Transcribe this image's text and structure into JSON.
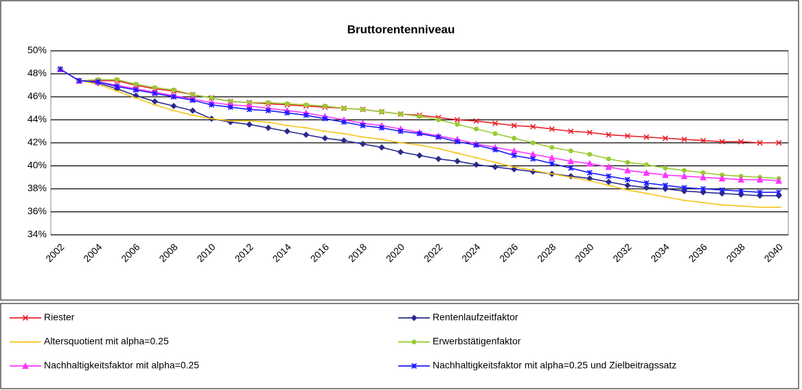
{
  "chart_data": {
    "type": "line",
    "title": "Bruttorentenniveau",
    "categories": [
      "2002",
      null,
      "2004",
      null,
      "2006",
      null,
      "2008",
      null,
      "2010",
      null,
      "2012",
      null,
      "2014",
      null,
      "2016",
      null,
      "2018",
      null,
      "2020",
      null,
      "2022",
      null,
      "2024",
      null,
      "2026",
      null,
      "2028",
      null,
      "2030",
      null,
      "2032",
      null,
      "2034",
      null,
      "2036",
      null,
      "2038",
      null,
      "2040"
    ],
    "ylim": [
      34,
      50
    ],
    "yticks": [
      {
        "value": 34,
        "label": "34%"
      },
      {
        "value": 36,
        "label": "36%"
      },
      {
        "value": 38,
        "label": "38%"
      },
      {
        "value": 40,
        "label": "40%"
      },
      {
        "value": 42,
        "label": "42%"
      },
      {
        "value": 44,
        "label": "44%"
      },
      {
        "value": 46,
        "label": "46%"
      },
      {
        "value": 48,
        "label": "48%"
      },
      {
        "value": 50,
        "label": "50%"
      }
    ],
    "grid": true,
    "legend": "bottom",
    "series": [
      {
        "name": "Riester",
        "color": "#e8202a",
        "marker": "x",
        "values": [
          48.4,
          47.4,
          47.4,
          47.4,
          47.0,
          46.7,
          46.5,
          46.2,
          45.9,
          45.6,
          45.5,
          45.4,
          45.3,
          45.2,
          45.1,
          45.0,
          44.9,
          44.7,
          44.5,
          44.4,
          44.2,
          44.0,
          43.9,
          43.7,
          43.5,
          43.4,
          43.2,
          43.0,
          42.9,
          42.7,
          42.6,
          42.5,
          42.4,
          42.3,
          42.2,
          42.1,
          42.1,
          42.0,
          42.0
        ]
      },
      {
        "name": "Rentenlaufzeitfaktor",
        "color": "#2a2a8c",
        "marker": "diamond",
        "values": [
          48.4,
          47.4,
          47.2,
          46.7,
          46.1,
          45.6,
          45.2,
          44.8,
          44.1,
          43.8,
          43.6,
          43.3,
          43.0,
          42.7,
          42.4,
          42.2,
          41.9,
          41.6,
          41.2,
          40.9,
          40.6,
          40.4,
          40.1,
          39.9,
          39.7,
          39.5,
          39.3,
          39.1,
          38.9,
          38.6,
          38.3,
          38.1,
          38.0,
          37.8,
          37.7,
          37.6,
          37.5,
          37.4,
          37.4
        ]
      },
      {
        "name": "Altersquotient mit alpha=0.25",
        "color": "#f5c518",
        "marker": "dash",
        "values": [
          48.4,
          47.4,
          47.1,
          46.5,
          45.9,
          45.3,
          44.8,
          44.4,
          44.1,
          43.9,
          43.9,
          43.8,
          43.5,
          43.3,
          43.0,
          42.8,
          42.5,
          42.3,
          42.0,
          41.8,
          41.5,
          41.1,
          40.7,
          40.3,
          39.9,
          39.6,
          39.3,
          39.0,
          38.7,
          38.3,
          37.9,
          37.6,
          37.3,
          37.0,
          36.8,
          36.6,
          36.5,
          36.4,
          36.4
        ]
      },
      {
        "name": "Erwerbstätigenfaktor",
        "color": "#99cc33",
        "marker": "circle",
        "values": [
          48.4,
          47.4,
          47.5,
          47.5,
          47.1,
          46.8,
          46.6,
          46.2,
          45.9,
          45.6,
          45.5,
          45.5,
          45.4,
          45.3,
          45.2,
          45.0,
          44.9,
          44.7,
          44.5,
          44.3,
          44.0,
          43.6,
          43.2,
          42.8,
          42.4,
          42.0,
          41.6,
          41.3,
          41.0,
          40.6,
          40.3,
          40.1,
          39.8,
          39.6,
          39.4,
          39.2,
          39.1,
          39.0,
          38.9
        ]
      },
      {
        "name": "Nachhaltigkeitsfaktor mit alpha=0.25",
        "color": "#ff33ff",
        "marker": "triangle",
        "values": [
          48.4,
          47.4,
          47.3,
          47.0,
          46.7,
          46.4,
          46.1,
          45.8,
          45.5,
          45.3,
          45.2,
          45.0,
          44.8,
          44.6,
          44.3,
          44.0,
          43.7,
          43.5,
          43.2,
          42.9,
          42.6,
          42.3,
          41.9,
          41.6,
          41.3,
          41.0,
          40.7,
          40.4,
          40.2,
          39.9,
          39.6,
          39.4,
          39.2,
          39.1,
          39.0,
          38.9,
          38.8,
          38.8,
          38.7
        ]
      },
      {
        "name": "Nachhaltigkeitsfaktor mit alpha=0.25 und Zielbeitragssatz",
        "color": "#1a1aff",
        "marker": "star",
        "values": [
          48.4,
          47.4,
          47.3,
          46.9,
          46.6,
          46.3,
          46.0,
          45.7,
          45.3,
          45.1,
          44.9,
          44.8,
          44.6,
          44.4,
          44.1,
          43.8,
          43.5,
          43.3,
          43.0,
          42.8,
          42.5,
          42.1,
          41.8,
          41.4,
          40.9,
          40.6,
          40.2,
          39.8,
          39.4,
          39.1,
          38.8,
          38.5,
          38.3,
          38.1,
          38.0,
          37.9,
          37.8,
          37.7,
          37.7
        ]
      }
    ]
  }
}
